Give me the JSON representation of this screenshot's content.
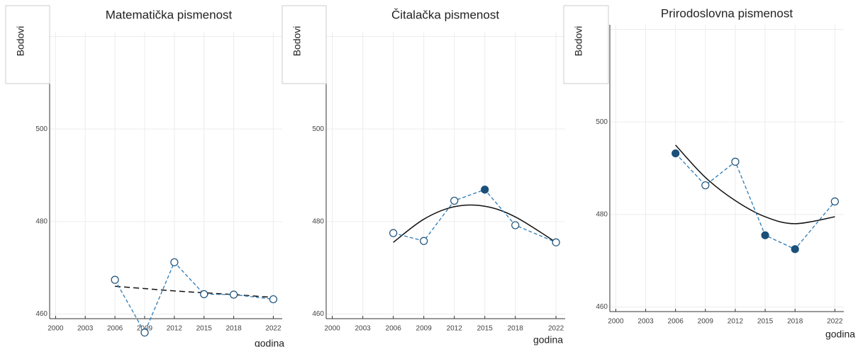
{
  "chart_data": [
    {
      "type": "line",
      "title": "Matematička pismenost",
      "ylabel": "Bodovi",
      "xlabel": "godina",
      "x": [
        2006,
        2009,
        2012,
        2015,
        2018,
        2022
      ],
      "values": [
        467.4,
        456,
        471.2,
        464.3,
        464.2,
        463.2
      ],
      "filled": [
        false,
        false,
        false,
        false,
        false,
        false
      ],
      "trend": [
        466,
        465.5,
        465,
        464.6,
        464.2,
        463.6
      ],
      "trend_style": "dashed",
      "color": "#2e7bb4",
      "marker_color": "#1a4f7a",
      "trend_color": "#111111",
      "xlim": [
        1999.4,
        2022.9
      ],
      "ylim": [
        459,
        521
      ],
      "xticks": [
        2000,
        2003,
        2006,
        2009,
        2012,
        2015,
        2018,
        2022
      ],
      "yticks": [
        460,
        480,
        500,
        520
      ],
      "grid": true
    },
    {
      "type": "line",
      "title": "Čitalačka pismenost",
      "ylabel": "Bodovi",
      "xlabel": "godina",
      "x": [
        2006,
        2009,
        2012,
        2015,
        2018,
        2022
      ],
      "values": [
        477.5,
        475.8,
        484.5,
        486.9,
        479.2,
        475.5
      ],
      "filled": [
        false,
        false,
        false,
        true,
        false,
        false
      ],
      "trend": [
        475.5,
        480.5,
        483.2,
        483.3,
        481,
        475.5
      ],
      "trend_style": "solid",
      "color": "#2e7bb4",
      "marker_color": "#1a4f7a",
      "trend_color": "#111111",
      "xlim": [
        1999.4,
        2022.9
      ],
      "ylim": [
        459,
        521
      ],
      "xticks": [
        2000,
        2003,
        2006,
        2009,
        2012,
        2015,
        2018,
        2022
      ],
      "yticks": [
        460,
        480,
        500,
        520
      ],
      "grid": true
    },
    {
      "type": "line",
      "title": "Prirodoslovna pismenost",
      "ylabel": "Bodovi",
      "xlabel": "godina",
      "x": [
        2006,
        2009,
        2012,
        2015,
        2018,
        2022
      ],
      "values": [
        493.2,
        486.3,
        491.4,
        475.5,
        472.5,
        482.8
      ],
      "filled": [
        true,
        false,
        false,
        true,
        true,
        false
      ],
      "trend": [
        495,
        488,
        483,
        479.5,
        478,
        479.5
      ],
      "trend_style": "solid",
      "color": "#2e7bb4",
      "marker_color": "#1a4f7a",
      "trend_color": "#111111",
      "xlim": [
        1999.4,
        2022.9
      ],
      "ylim": [
        459,
        521
      ],
      "xticks": [
        2000,
        2003,
        2006,
        2009,
        2012,
        2015,
        2018,
        2022
      ],
      "yticks": [
        460,
        480,
        500,
        520
      ],
      "grid": true
    }
  ]
}
